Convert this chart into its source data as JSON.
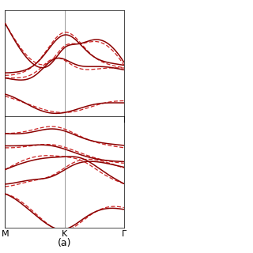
{
  "xlabel_labels": [
    "M",
    "K",
    "Γ"
  ],
  "subplot_label": "(a)",
  "line_color_solid": "#8b0000",
  "line_color_dashed": "#cc2222",
  "linewidth_solid": 1.1,
  "linewidth_dashed": 0.9,
  "vline_color": "#888888",
  "vline_lw": 0.6
}
